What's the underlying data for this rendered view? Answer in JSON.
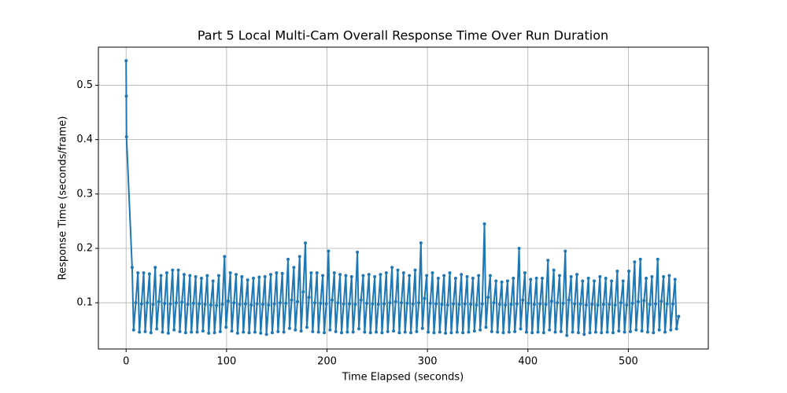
{
  "chart_data": {
    "type": "line",
    "title": "Part 5 Local Multi-Cam Overall Response Time Over Run Duration",
    "x_label": "Time Elapsed (seconds)",
    "y_label": "Response Time (seconds/frame)",
    "xlim": [
      -27.6,
      579.6
    ],
    "ylim": [
      0.015,
      0.57
    ],
    "xticks": [
      0,
      100,
      200,
      300,
      400,
      500
    ],
    "yticks": [
      0.1,
      0.2,
      0.3,
      0.4,
      0.5
    ],
    "grid": true,
    "series": [
      {
        "color": "#1f77b4",
        "x": [
          0,
          0.2,
          0.4,
          6,
          7.5,
          9.6,
          11.75,
          13.25,
          15.35,
          17.5,
          19,
          21.1,
          23.25,
          24.75,
          26.85,
          29,
          30.5,
          32.6,
          34.75,
          36.25,
          38.35,
          40.5,
          42,
          44.1,
          46.25,
          47.75,
          49.85,
          52,
          53.5,
          55.6,
          57.75,
          59.25,
          61.35,
          63.5,
          65,
          67.1,
          69.25,
          70.75,
          72.85,
          75,
          76.5,
          78.6,
          80.75,
          82.25,
          84.35,
          86.5,
          88,
          90.1,
          92.25,
          93.75,
          95.85,
          98,
          99.5,
          101.6,
          103.75,
          105.25,
          107.35,
          109.5,
          111,
          113.1,
          115.25,
          116.75,
          118.85,
          121,
          122.5,
          124.6,
          126.75,
          128.25,
          130.35,
          132.5,
          134,
          136.1,
          138.25,
          139.75,
          141.85,
          144,
          145.5,
          147.6,
          149.75,
          151.25,
          153.35,
          155.5,
          157,
          159.1,
          161.25,
          162.75,
          164.85,
          167,
          168.5,
          170.6,
          172.75,
          174.25,
          176.35,
          178.5,
          180,
          182.1,
          184.25,
          185.75,
          187.85,
          190,
          191.5,
          193.6,
          195.75,
          197.25,
          199.35,
          201.5,
          203,
          205.1,
          207.25,
          208.75,
          210.85,
          213,
          214.5,
          216.6,
          218.75,
          220.25,
          222.35,
          224.5,
          226,
          228.1,
          230.25,
          231.75,
          233.85,
          236,
          237.5,
          239.6,
          241.75,
          243.25,
          245.35,
          247.5,
          249,
          251.1,
          253.25,
          254.75,
          256.85,
          259,
          260.5,
          262.6,
          264.75,
          266.25,
          268.35,
          270.5,
          272,
          274.1,
          276.25,
          277.75,
          279.85,
          282,
          283.5,
          285.6,
          287.75,
          289.25,
          291.35,
          293.5,
          295,
          297.1,
          299.25,
          300.75,
          302.85,
          305,
          306.5,
          308.6,
          310.75,
          312.25,
          314.35,
          316.5,
          318,
          320.1,
          322.25,
          323.75,
          325.85,
          328,
          329.5,
          331.6,
          333.75,
          335.25,
          337.35,
          339.5,
          341,
          343.1,
          345.25,
          346.75,
          348.85,
          351,
          352.5,
          354.6,
          356.75,
          358.25,
          360.35,
          362.5,
          364,
          366.1,
          368.25,
          369.75,
          371.85,
          374,
          375.5,
          377.6,
          379.75,
          381.25,
          383.35,
          385.5,
          387,
          389.1,
          391.25,
          392.75,
          394.85,
          397,
          398.5,
          400.6,
          402.75,
          404.25,
          406.35,
          408.5,
          410,
          412.1,
          414.25,
          415.75,
          417.85,
          420,
          421.5,
          423.6,
          425.75,
          427.25,
          429.35,
          431.5,
          433,
          435.1,
          437.25,
          438.75,
          440.85,
          443,
          444.5,
          446.6,
          448.75,
          450.25,
          452.35,
          454.5,
          456,
          458.1,
          460.25,
          461.75,
          463.85,
          466,
          467.5,
          469.6,
          471.75,
          473.25,
          475.35,
          477.5,
          479,
          481.1,
          483.25,
          484.75,
          486.85,
          489,
          490.5,
          492.6,
          494.75,
          496.25,
          498.35,
          500.5,
          502,
          504.1,
          506.25,
          507.75,
          509.85,
          512,
          513.5,
          515.6,
          517.75,
          519.25,
          521.35,
          523.5,
          525,
          527.1,
          529.25,
          530.75,
          532.85,
          535,
          536.5,
          538.6,
          540.75,
          542.25,
          544.35,
          546.5,
          548,
          550.1
        ],
        "values": [
          0.545,
          0.48,
          0.405,
          0.165,
          0.05,
          0.1,
          0.155,
          0.046,
          0.098,
          0.155,
          0.047,
          0.1,
          0.153,
          0.045,
          0.097,
          0.165,
          0.052,
          0.102,
          0.15,
          0.046,
          0.099,
          0.155,
          0.044,
          0.098,
          0.16,
          0.05,
          0.1,
          0.16,
          0.047,
          0.101,
          0.152,
          0.045,
          0.097,
          0.15,
          0.046,
          0.099,
          0.148,
          0.046,
          0.098,
          0.145,
          0.048,
          0.097,
          0.15,
          0.044,
          0.096,
          0.14,
          0.045,
          0.095,
          0.15,
          0.047,
          0.097,
          0.185,
          0.055,
          0.103,
          0.155,
          0.048,
          0.1,
          0.152,
          0.044,
          0.097,
          0.148,
          0.046,
          0.098,
          0.142,
          0.045,
          0.096,
          0.145,
          0.046,
          0.098,
          0.147,
          0.044,
          0.097,
          0.148,
          0.042,
          0.096,
          0.152,
          0.045,
          0.098,
          0.155,
          0.047,
          0.1,
          0.154,
          0.046,
          0.099,
          0.18,
          0.053,
          0.105,
          0.165,
          0.05,
          0.102,
          0.185,
          0.048,
          0.12,
          0.21,
          0.055,
          0.11,
          0.155,
          0.047,
          0.1,
          0.155,
          0.046,
          0.099,
          0.15,
          0.045,
          0.098,
          0.195,
          0.05,
          0.105,
          0.155,
          0.047,
          0.1,
          0.152,
          0.045,
          0.098,
          0.15,
          0.046,
          0.098,
          0.148,
          0.046,
          0.097,
          0.193,
          0.052,
          0.105,
          0.15,
          0.046,
          0.099,
          0.152,
          0.045,
          0.098,
          0.148,
          0.046,
          0.097,
          0.152,
          0.045,
          0.098,
          0.155,
          0.047,
          0.1,
          0.165,
          0.048,
          0.102,
          0.16,
          0.045,
          0.1,
          0.155,
          0.046,
          0.099,
          0.15,
          0.045,
          0.098,
          0.16,
          0.047,
          0.1,
          0.21,
          0.053,
          0.108,
          0.15,
          0.046,
          0.099,
          0.155,
          0.045,
          0.098,
          0.145,
          0.046,
          0.097,
          0.15,
          0.044,
          0.096,
          0.155,
          0.045,
          0.098,
          0.145,
          0.046,
          0.097,
          0.152,
          0.045,
          0.098,
          0.148,
          0.046,
          0.097,
          0.145,
          0.048,
          0.096,
          0.15,
          0.05,
          0.098,
          0.245,
          0.055,
          0.11,
          0.15,
          0.047,
          0.1,
          0.14,
          0.046,
          0.097,
          0.138,
          0.045,
          0.096,
          0.14,
          0.046,
          0.097,
          0.145,
          0.047,
          0.098,
          0.2,
          0.052,
          0.105,
          0.155,
          0.046,
          0.099,
          0.143,
          0.045,
          0.097,
          0.145,
          0.046,
          0.098,
          0.145,
          0.045,
          0.097,
          0.178,
          0.05,
          0.103,
          0.16,
          0.046,
          0.1,
          0.15,
          0.047,
          0.099,
          0.195,
          0.04,
          0.105,
          0.148,
          0.046,
          0.098,
          0.152,
          0.045,
          0.098,
          0.14,
          0.042,
          0.096,
          0.145,
          0.045,
          0.097,
          0.14,
          0.046,
          0.096,
          0.148,
          0.045,
          0.097,
          0.145,
          0.046,
          0.097,
          0.14,
          0.045,
          0.096,
          0.158,
          0.048,
          0.1,
          0.14,
          0.046,
          0.096,
          0.158,
          0.047,
          0.099,
          0.175,
          0.05,
          0.102,
          0.18,
          0.048,
          0.104,
          0.145,
          0.046,
          0.097,
          0.148,
          0.045,
          0.098,
          0.18,
          0.05,
          0.103,
          0.148,
          0.046,
          0.098,
          0.15,
          0.05,
          0.098,
          0.143,
          0.052,
          0.075
        ]
      }
    ]
  }
}
